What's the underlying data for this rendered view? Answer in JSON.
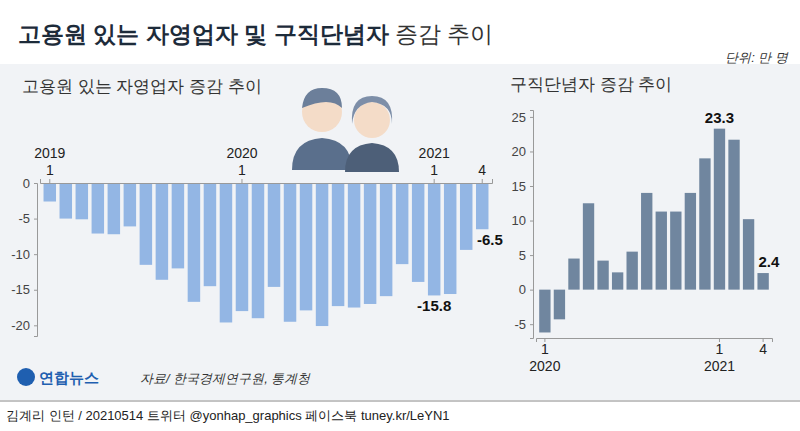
{
  "title": "고용원 있는 자영업자 및 구직단념자 증감 추이",
  "unit": "단위: 만 명",
  "source": "자료/ 한국경제연구원, 통계청",
  "logo": "연합뉴스",
  "credit": "김계리 인턴 / 20210514  트위터 @yonhap_graphics  페이스북 tuney.kr/LeYN1",
  "chart_data": [
    {
      "type": "bar",
      "title": "고용원 있는 자영업자 증감 추이",
      "categories": [
        "2019\n1",
        null,
        null,
        null,
        null,
        null,
        null,
        null,
        null,
        null,
        null,
        null,
        "2020\n1",
        null,
        null,
        null,
        null,
        null,
        null,
        null,
        null,
        null,
        null,
        null,
        "2021\n1",
        null,
        null,
        "4"
      ],
      "values": [
        -2.6,
        -5.0,
        -5.1,
        -7.1,
        -7.2,
        -6.1,
        -11.5,
        -13.6,
        -12.0,
        -16.7,
        -14.5,
        -19.6,
        -18.0,
        -19.0,
        -14.6,
        -19.5,
        -17.9,
        -20.1,
        -17.3,
        -17.5,
        -17.0,
        -15.9,
        -11.4,
        -13.9,
        -15.8,
        -15.6,
        -9.4,
        -6.5
      ],
      "color": "#93b6e4",
      "ylim": [
        -21.5,
        0
      ],
      "yticks": [
        -20,
        -15,
        -10,
        -5,
        0
      ],
      "annotations": [
        {
          "x": 24,
          "y": -15.8,
          "text": "-15.8"
        },
        {
          "x": 27,
          "y": -6.5,
          "text": "-6.5"
        }
      ]
    },
    {
      "type": "bar",
      "title": "구직단념자 증감 추이",
      "categories": [
        "1\n2020",
        null,
        null,
        null,
        null,
        null,
        null,
        null,
        null,
        null,
        null,
        null,
        "1\n2021",
        null,
        null,
        "4"
      ],
      "values": [
        -6.2,
        -4.3,
        4.5,
        12.5,
        4.2,
        2.5,
        5.5,
        14.0,
        11.3,
        11.3,
        14.0,
        19.0,
        23.3,
        21.7,
        10.2,
        2.4
      ],
      "color": "#70869f",
      "ylim": [
        -7,
        26
      ],
      "yticks": [
        -5,
        0,
        5,
        10,
        15,
        20,
        25
      ],
      "annotations": [
        {
          "x": 12,
          "y": 23.3,
          "text": "23.3"
        },
        {
          "x": 15,
          "y": 2.4,
          "text": "2.4"
        }
      ]
    }
  ]
}
